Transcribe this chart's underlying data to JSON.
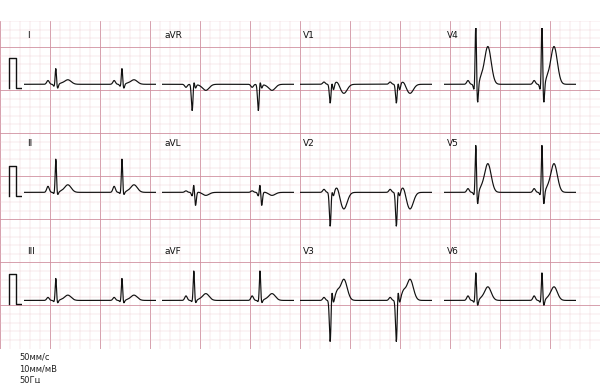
{
  "bg_color": "#f5e8e8",
  "grid_minor_color": "#e8c0c8",
  "grid_major_color": "#d090a0",
  "ecg_color": "#111111",
  "top_margin_color": "#ddeeff",
  "fig_width": 6.0,
  "fig_height": 3.83,
  "footer_text": [
    "50мм/с",
    "10мм/мВ",
    "50Гц"
  ],
  "row_labels": [
    [
      "I",
      "aVR",
      "V1",
      "V4"
    ],
    [
      "II",
      "aVL",
      "V2",
      "V5"
    ],
    [
      "III",
      "aVF",
      "V3",
      "V6"
    ]
  ]
}
